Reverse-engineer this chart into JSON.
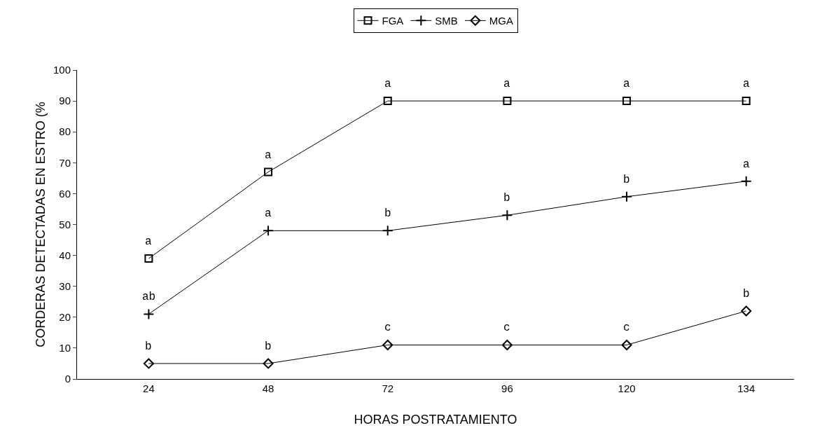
{
  "chart_data": {
    "type": "line",
    "xlabel": "HORAS POSTRATAMIENTO",
    "ylabel": "CORDERAS DETECTADAS EN ESTRO (%",
    "categories": [
      "24",
      "48",
      "72",
      "96",
      "120",
      "134"
    ],
    "series": [
      {
        "name": "FGA",
        "color": "#000000",
        "marker": "square",
        "values": [
          39,
          67,
          90,
          90,
          90,
          90
        ]
      },
      {
        "name": "SMB",
        "color": "#000000",
        "marker": "cross",
        "values": [
          21,
          48,
          48,
          53,
          59,
          64
        ]
      },
      {
        "name": "MGA",
        "color": "#000000",
        "marker": "diamond",
        "values": [
          5,
          5,
          11,
          11,
          11,
          22
        ]
      }
    ],
    "ylim": [
      0,
      100
    ],
    "yticks": [
      0,
      10,
      20,
      30,
      40,
      50,
      60,
      70,
      80,
      90,
      100
    ],
    "grid": false,
    "legend": "top",
    "line_style": "solid",
    "annotations": [
      {
        "text": "a",
        "x": "24",
        "y": 39
      },
      {
        "text": "a",
        "x": "48",
        "y": 67
      },
      {
        "text": "a",
        "x": "72",
        "y": 90
      },
      {
        "text": "a",
        "x": "96",
        "y": 90
      },
      {
        "text": "a",
        "x": "120",
        "y": 90
      },
      {
        "text": "a",
        "x": "134",
        "y": 90
      },
      {
        "text": "ab",
        "x": "24",
        "y": 21
      },
      {
        "text": "a",
        "x": "48",
        "y": 48
      },
      {
        "text": "b",
        "x": "72",
        "y": 48
      },
      {
        "text": "b",
        "x": "96",
        "y": 53
      },
      {
        "text": "b",
        "x": "120",
        "y": 59
      },
      {
        "text": "a",
        "x": "134",
        "y": 64
      },
      {
        "text": "b",
        "x": "24",
        "y": 5
      },
      {
        "text": "b",
        "x": "48",
        "y": 5
      },
      {
        "text": "c",
        "x": "72",
        "y": 11
      },
      {
        "text": "c",
        "x": "96",
        "y": 11
      },
      {
        "text": "c",
        "x": "120",
        "y": 11
      },
      {
        "text": "b",
        "x": "134",
        "y": 22
      }
    ]
  }
}
